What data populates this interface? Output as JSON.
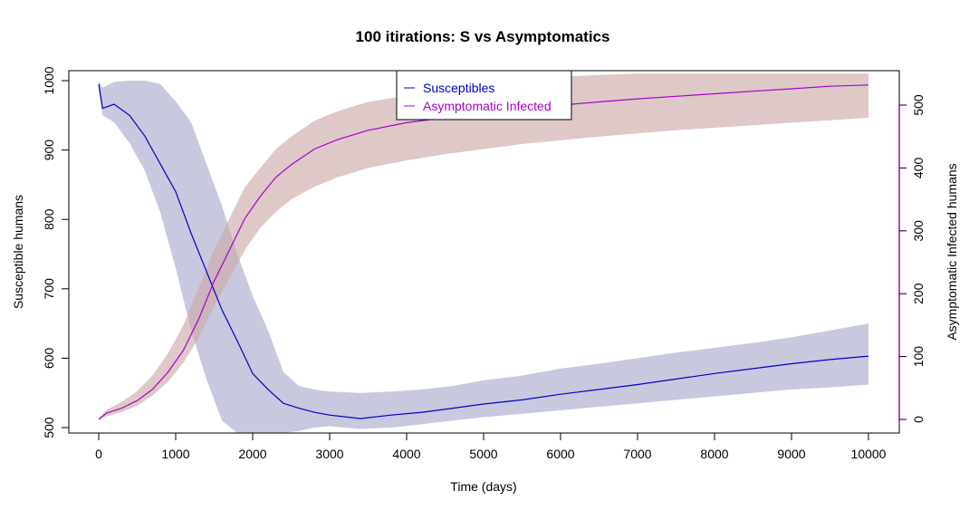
{
  "chart_data": {
    "type": "line",
    "title": "100  itirations: S vs Asymptomatics",
    "xlabel": "Time (days)",
    "ylabel_left": "Susceptible humans",
    "ylabel_right": "Asymptomatic Infected humans",
    "xlim": [
      0,
      10000
    ],
    "ylim_left": [
      500,
      1000
    ],
    "ylim_right": [
      0,
      500
    ],
    "x_ticks": [
      0,
      1000,
      2000,
      3000,
      4000,
      5000,
      6000,
      7000,
      8000,
      9000,
      10000
    ],
    "y_left_ticks": [
      500,
      600,
      700,
      800,
      900,
      1000
    ],
    "y_right_ticks": [
      0,
      100,
      200,
      300,
      400,
      500
    ],
    "legend_position": "top-center",
    "series": [
      {
        "name": "Susceptibles",
        "axis": "left",
        "color": "#0000cc",
        "band_color": "#aaaacc",
        "x": [
          0,
          50,
          200,
          400,
          600,
          800,
          1000,
          1200,
          1400,
          1600,
          1800,
          2000,
          2200,
          2400,
          2600,
          2800,
          3000,
          3400,
          3800,
          4200,
          4600,
          5000,
          5500,
          6000,
          6500,
          7000,
          7500,
          8000,
          8500,
          9000,
          9500,
          10000
        ],
        "mean": [
          995,
          960,
          966,
          950,
          920,
          880,
          840,
          780,
          725,
          670,
          625,
          578,
          555,
          535,
          528,
          522,
          518,
          513,
          518,
          522,
          528,
          534,
          540,
          548,
          555,
          562,
          570,
          578,
          585,
          592,
          598,
          603
        ],
        "lower": [
          985,
          950,
          940,
          910,
          870,
          810,
          730,
          640,
          570,
          510,
          490,
          470,
          470,
          480,
          495,
          500,
          502,
          498,
          500,
          505,
          510,
          515,
          520,
          525,
          530,
          535,
          540,
          545,
          550,
          555,
          558,
          562
        ],
        "upper": [
          1000,
          990,
          998,
          1000,
          1000,
          995,
          970,
          940,
          880,
          820,
          750,
          690,
          640,
          580,
          560,
          555,
          552,
          550,
          552,
          555,
          560,
          568,
          575,
          585,
          592,
          600,
          608,
          615,
          622,
          630,
          640,
          650
        ]
      },
      {
        "name": "Asymptomatic Infected",
        "axis": "right",
        "color": "#aa00cc",
        "band_color": "#ccaaaa",
        "x": [
          0,
          100,
          300,
          500,
          700,
          900,
          1100,
          1300,
          1500,
          1700,
          1900,
          2100,
          2300,
          2500,
          2800,
          3100,
          3500,
          4000,
          4500,
          5000,
          5500,
          6000,
          6500,
          7000,
          7500,
          8000,
          8500,
          9000,
          9500,
          10000
        ],
        "mean": [
          0,
          10,
          18,
          30,
          48,
          75,
          110,
          160,
          220,
          270,
          320,
          355,
          385,
          405,
          430,
          445,
          460,
          472,
          480,
          488,
          494,
          500,
          505,
          510,
          514,
          518,
          522,
          526,
          530,
          532
        ],
        "lower": [
          0,
          5,
          12,
          22,
          38,
          60,
          90,
          130,
          180,
          225,
          270,
          305,
          330,
          350,
          370,
          385,
          400,
          412,
          422,
          430,
          438,
          444,
          450,
          455,
          460,
          464,
          468,
          472,
          476,
          480
        ],
        "upper": [
          2,
          15,
          28,
          45,
          70,
          105,
          150,
          210,
          270,
          320,
          370,
          400,
          430,
          450,
          475,
          490,
          505,
          515,
          525,
          535,
          540,
          545,
          548,
          550,
          550,
          550,
          550,
          550,
          550,
          550
        ]
      }
    ]
  }
}
